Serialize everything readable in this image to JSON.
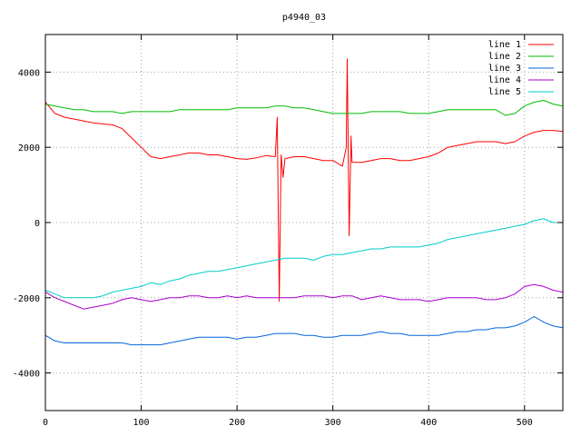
{
  "chart_data": {
    "type": "line",
    "title": "p4940_03",
    "xlabel": "",
    "ylabel": "",
    "xlim": [
      0,
      540
    ],
    "ylim": [
      -5000,
      5000
    ],
    "x_ticks": [
      0,
      100,
      200,
      300,
      400,
      500
    ],
    "y_ticks": [
      -4000,
      -2000,
      0,
      2000,
      4000
    ],
    "grid": true,
    "legend_position": "top-right",
    "series": [
      {
        "name": "line 1",
        "color": "#ff0000",
        "points": [
          [
            0,
            3200
          ],
          [
            10,
            2900
          ],
          [
            20,
            2800
          ],
          [
            30,
            2750
          ],
          [
            40,
            2700
          ],
          [
            50,
            2650
          ],
          [
            60,
            2620
          ],
          [
            70,
            2600
          ],
          [
            80,
            2500
          ],
          [
            90,
            2250
          ],
          [
            100,
            2000
          ],
          [
            110,
            1750
          ],
          [
            120,
            1700
          ],
          [
            130,
            1750
          ],
          [
            140,
            1800
          ],
          [
            150,
            1850
          ],
          [
            160,
            1850
          ],
          [
            170,
            1800
          ],
          [
            180,
            1800
          ],
          [
            190,
            1750
          ],
          [
            200,
            1700
          ],
          [
            210,
            1680
          ],
          [
            220,
            1720
          ],
          [
            230,
            1780
          ],
          [
            240,
            1750
          ],
          [
            242,
            2800
          ],
          [
            244,
            -2100
          ],
          [
            246,
            1800
          ],
          [
            248,
            1200
          ],
          [
            250,
            1700
          ],
          [
            260,
            1750
          ],
          [
            270,
            1750
          ],
          [
            280,
            1700
          ],
          [
            290,
            1650
          ],
          [
            300,
            1650
          ],
          [
            310,
            1500
          ],
          [
            314,
            2000
          ],
          [
            315,
            4350
          ],
          [
            317,
            -350
          ],
          [
            319,
            2300
          ],
          [
            320,
            1600
          ],
          [
            330,
            1600
          ],
          [
            340,
            1650
          ],
          [
            350,
            1700
          ],
          [
            360,
            1700
          ],
          [
            370,
            1650
          ],
          [
            380,
            1650
          ],
          [
            390,
            1700
          ],
          [
            400,
            1750
          ],
          [
            410,
            1850
          ],
          [
            420,
            2000
          ],
          [
            430,
            2050
          ],
          [
            440,
            2100
          ],
          [
            450,
            2150
          ],
          [
            460,
            2150
          ],
          [
            470,
            2150
          ],
          [
            480,
            2100
          ],
          [
            490,
            2150
          ],
          [
            500,
            2300
          ],
          [
            510,
            2400
          ],
          [
            520,
            2450
          ],
          [
            530,
            2450
          ],
          [
            540,
            2420
          ]
        ]
      },
      {
        "name": "line 2",
        "color": "#00bb00",
        "points": [
          [
            0,
            3150
          ],
          [
            10,
            3100
          ],
          [
            20,
            3050
          ],
          [
            30,
            3000
          ],
          [
            40,
            3000
          ],
          [
            50,
            2950
          ],
          [
            60,
            2950
          ],
          [
            70,
            2950
          ],
          [
            80,
            2900
          ],
          [
            90,
            2950
          ],
          [
            100,
            2950
          ],
          [
            110,
            2950
          ],
          [
            120,
            2950
          ],
          [
            130,
            2950
          ],
          [
            140,
            3000
          ],
          [
            150,
            3000
          ],
          [
            160,
            3000
          ],
          [
            170,
            3000
          ],
          [
            180,
            3000
          ],
          [
            190,
            3000
          ],
          [
            200,
            3050
          ],
          [
            210,
            3050
          ],
          [
            220,
            3050
          ],
          [
            230,
            3050
          ],
          [
            240,
            3100
          ],
          [
            250,
            3100
          ],
          [
            260,
            3050
          ],
          [
            270,
            3050
          ],
          [
            280,
            3000
          ],
          [
            290,
            2950
          ],
          [
            300,
            2900
          ],
          [
            310,
            2900
          ],
          [
            320,
            2900
          ],
          [
            330,
            2900
          ],
          [
            340,
            2950
          ],
          [
            350,
            2950
          ],
          [
            360,
            2950
          ],
          [
            370,
            2950
          ],
          [
            380,
            2900
          ],
          [
            390,
            2900
          ],
          [
            400,
            2900
          ],
          [
            410,
            2950
          ],
          [
            420,
            3000
          ],
          [
            430,
            3000
          ],
          [
            440,
            3000
          ],
          [
            450,
            3000
          ],
          [
            460,
            3000
          ],
          [
            470,
            3000
          ],
          [
            480,
            2850
          ],
          [
            490,
            2900
          ],
          [
            500,
            3100
          ],
          [
            510,
            3200
          ],
          [
            520,
            3250
          ],
          [
            530,
            3150
          ],
          [
            540,
            3100
          ]
        ]
      },
      {
        "name": "line 3",
        "color": "#0066dd",
        "points": [
          [
            0,
            -3000
          ],
          [
            10,
            -3150
          ],
          [
            20,
            -3200
          ],
          [
            30,
            -3200
          ],
          [
            40,
            -3200
          ],
          [
            50,
            -3200
          ],
          [
            60,
            -3200
          ],
          [
            70,
            -3200
          ],
          [
            80,
            -3200
          ],
          [
            90,
            -3250
          ],
          [
            100,
            -3250
          ],
          [
            110,
            -3250
          ],
          [
            120,
            -3250
          ],
          [
            130,
            -3200
          ],
          [
            140,
            -3150
          ],
          [
            150,
            -3100
          ],
          [
            160,
            -3050
          ],
          [
            170,
            -3050
          ],
          [
            180,
            -3050
          ],
          [
            190,
            -3050
          ],
          [
            200,
            -3100
          ],
          [
            210,
            -3050
          ],
          [
            220,
            -3050
          ],
          [
            230,
            -3000
          ],
          [
            240,
            -2950
          ],
          [
            250,
            -2950
          ],
          [
            260,
            -2950
          ],
          [
            270,
            -3000
          ],
          [
            280,
            -3000
          ],
          [
            290,
            -3050
          ],
          [
            300,
            -3050
          ],
          [
            310,
            -3000
          ],
          [
            320,
            -3000
          ],
          [
            330,
            -3000
          ],
          [
            340,
            -2950
          ],
          [
            350,
            -2900
          ],
          [
            360,
            -2950
          ],
          [
            370,
            -2950
          ],
          [
            380,
            -3000
          ],
          [
            390,
            -3000
          ],
          [
            400,
            -3000
          ],
          [
            410,
            -3000
          ],
          [
            420,
            -2950
          ],
          [
            430,
            -2900
          ],
          [
            440,
            -2900
          ],
          [
            450,
            -2850
          ],
          [
            460,
            -2850
          ],
          [
            470,
            -2800
          ],
          [
            480,
            -2800
          ],
          [
            490,
            -2750
          ],
          [
            500,
            -2650
          ],
          [
            510,
            -2500
          ],
          [
            520,
            -2650
          ],
          [
            530,
            -2750
          ],
          [
            540,
            -2800
          ]
        ]
      },
      {
        "name": "line 4",
        "color": "#aa00cc",
        "points": [
          [
            0,
            -1850
          ],
          [
            10,
            -2000
          ],
          [
            20,
            -2100
          ],
          [
            30,
            -2200
          ],
          [
            40,
            -2300
          ],
          [
            50,
            -2250
          ],
          [
            60,
            -2200
          ],
          [
            70,
            -2150
          ],
          [
            80,
            -2050
          ],
          [
            90,
            -2000
          ],
          [
            100,
            -2050
          ],
          [
            110,
            -2100
          ],
          [
            120,
            -2050
          ],
          [
            130,
            -2000
          ],
          [
            140,
            -2000
          ],
          [
            150,
            -1950
          ],
          [
            160,
            -1950
          ],
          [
            170,
            -2000
          ],
          [
            180,
            -2000
          ],
          [
            190,
            -1950
          ],
          [
            200,
            -2000
          ],
          [
            210,
            -1950
          ],
          [
            220,
            -2000
          ],
          [
            230,
            -2000
          ],
          [
            240,
            -2000
          ],
          [
            250,
            -2000
          ],
          [
            260,
            -2000
          ],
          [
            270,
            -1950
          ],
          [
            280,
            -1950
          ],
          [
            290,
            -1950
          ],
          [
            300,
            -2000
          ],
          [
            310,
            -1950
          ],
          [
            320,
            -1950
          ],
          [
            330,
            -2050
          ],
          [
            340,
            -2000
          ],
          [
            350,
            -1950
          ],
          [
            360,
            -2000
          ],
          [
            370,
            -2050
          ],
          [
            380,
            -2050
          ],
          [
            390,
            -2050
          ],
          [
            400,
            -2100
          ],
          [
            410,
            -2050
          ],
          [
            420,
            -2000
          ],
          [
            430,
            -2000
          ],
          [
            440,
            -2000
          ],
          [
            450,
            -2000
          ],
          [
            460,
            -2050
          ],
          [
            470,
            -2050
          ],
          [
            480,
            -2000
          ],
          [
            490,
            -1900
          ],
          [
            500,
            -1700
          ],
          [
            510,
            -1650
          ],
          [
            520,
            -1700
          ],
          [
            530,
            -1800
          ],
          [
            540,
            -1850
          ]
        ]
      },
      {
        "name": "line 5",
        "color": "#00cccc",
        "points": [
          [
            0,
            -1800
          ],
          [
            10,
            -1900
          ],
          [
            20,
            -2000
          ],
          [
            30,
            -2000
          ],
          [
            40,
            -2000
          ],
          [
            50,
            -2000
          ],
          [
            60,
            -1950
          ],
          [
            70,
            -1850
          ],
          [
            80,
            -1800
          ],
          [
            90,
            -1750
          ],
          [
            100,
            -1700
          ],
          [
            110,
            -1600
          ],
          [
            120,
            -1650
          ],
          [
            130,
            -1550
          ],
          [
            140,
            -1500
          ],
          [
            150,
            -1400
          ],
          [
            160,
            -1350
          ],
          [
            170,
            -1300
          ],
          [
            180,
            -1300
          ],
          [
            190,
            -1250
          ],
          [
            200,
            -1200
          ],
          [
            210,
            -1150
          ],
          [
            220,
            -1100
          ],
          [
            230,
            -1050
          ],
          [
            240,
            -1000
          ],
          [
            250,
            -950
          ],
          [
            260,
            -950
          ],
          [
            270,
            -950
          ],
          [
            280,
            -1000
          ],
          [
            290,
            -900
          ],
          [
            300,
            -850
          ],
          [
            310,
            -850
          ],
          [
            320,
            -800
          ],
          [
            330,
            -750
          ],
          [
            340,
            -700
          ],
          [
            350,
            -700
          ],
          [
            360,
            -650
          ],
          [
            370,
            -650
          ],
          [
            380,
            -650
          ],
          [
            390,
            -650
          ],
          [
            400,
            -600
          ],
          [
            410,
            -550
          ],
          [
            420,
            -450
          ],
          [
            430,
            -400
          ],
          [
            440,
            -350
          ],
          [
            450,
            -300
          ],
          [
            460,
            -250
          ],
          [
            470,
            -200
          ],
          [
            480,
            -150
          ],
          [
            490,
            -100
          ],
          [
            500,
            -50
          ],
          [
            510,
            50
          ],
          [
            520,
            100
          ],
          [
            530,
            0
          ],
          [
            540,
            0
          ]
        ]
      }
    ]
  }
}
